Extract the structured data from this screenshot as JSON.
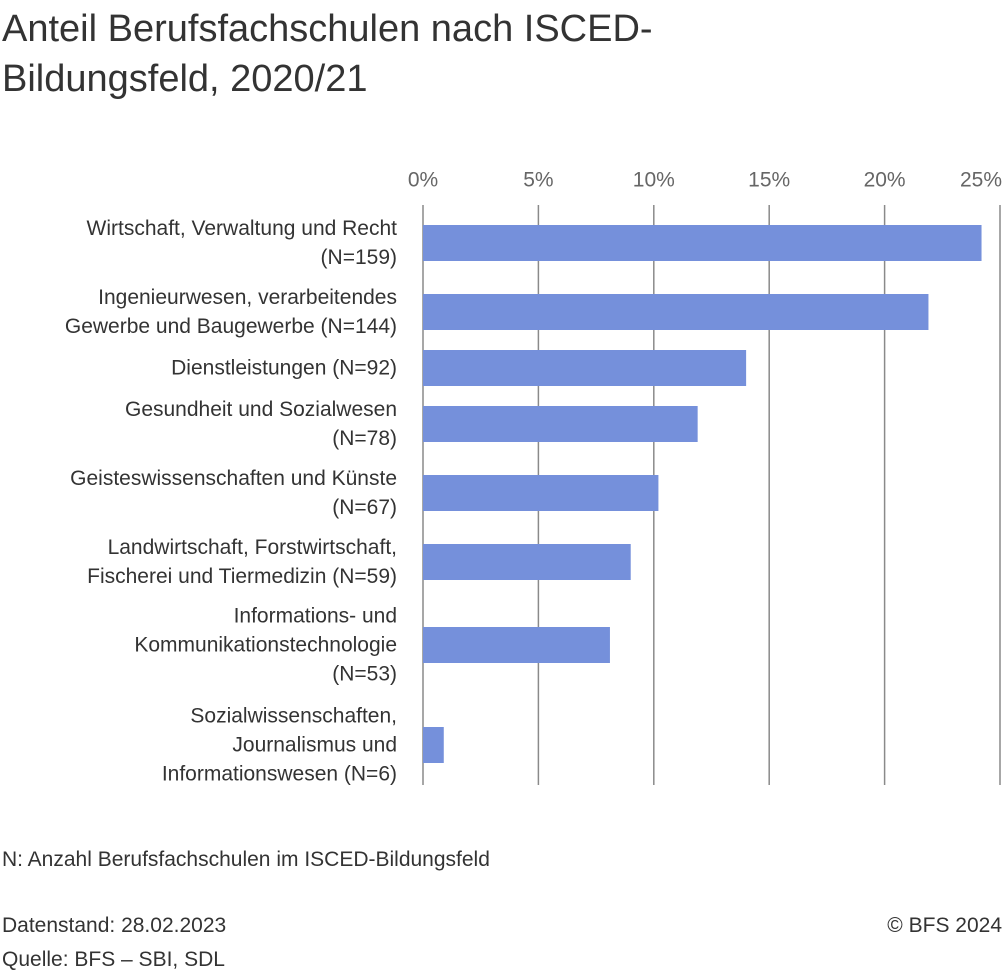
{
  "chart_data": {
    "type": "bar",
    "orientation": "horizontal",
    "title": "Anteil Berufsfachschulen nach ISCED-\nBildungsfeld, 2020/21",
    "categories": [
      "Wirtschaft, Verwaltung und Recht\n(N=159)",
      "Ingenieurwesen, verarbeitendes\nGewerbe und Baugewerbe (N=144)",
      "Dienstleistungen (N=92)",
      "Gesundheit und Sozialwesen\n(N=78)",
      "Geisteswissenschaften und Künste\n(N=67)",
      "Landwirtschaft, Forstwirtschaft,\nFischerei und Tiermedizin (N=59)",
      "Informations- und\nKommunikationstechnologie\n(N=53)",
      "Sozialwissenschaften,\nJournalismus und\nInformationswesen (N=6)"
    ],
    "values": [
      24.2,
      21.9,
      14.0,
      11.9,
      10.2,
      9.0,
      8.1,
      0.9
    ],
    "color": "#7590db",
    "xlim": [
      0,
      25
    ],
    "xticks": [
      {
        "value": 0,
        "label": "0%"
      },
      {
        "value": 5,
        "label": "5%"
      },
      {
        "value": 10,
        "label": "10%"
      },
      {
        "value": 15,
        "label": "15%"
      },
      {
        "value": 20,
        "label": "20%"
      },
      {
        "value": 25,
        "label": "25%"
      }
    ],
    "grid": true,
    "footnote": "N: Anzahl Berufsfachschulen im ISCED-Bildungsfeld",
    "date": "Datenstand: 28.02.2023",
    "source": "Quelle: BFS – SBI, SDL",
    "copyright": "© BFS 2024"
  }
}
